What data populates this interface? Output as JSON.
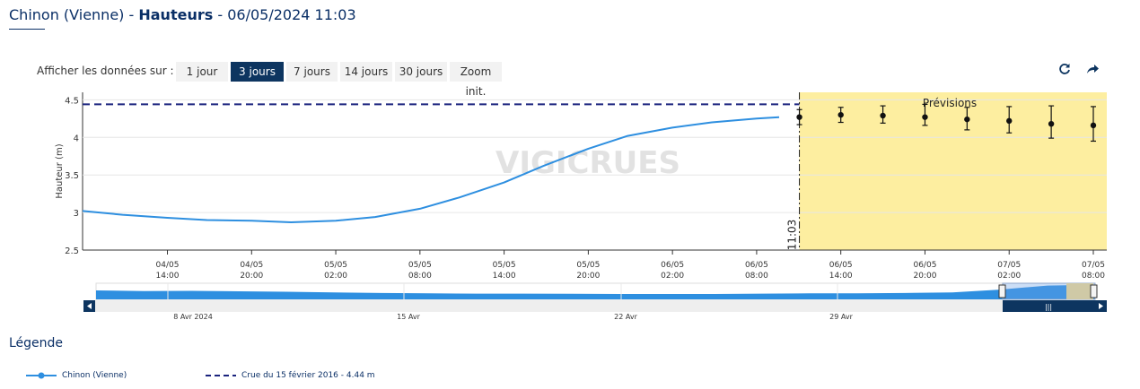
{
  "header": {
    "station": "Chinon (Vienne)",
    "sep1": " - ",
    "measure": "Hauteurs",
    "sep2": " - ",
    "datetime": "06/05/2024 11:03"
  },
  "period_selector": {
    "label": "Afficher les données sur :",
    "buttons": [
      "1 jour",
      "3 jours",
      "7 jours",
      "14 jours",
      "30 jours",
      "Zoom init."
    ],
    "active": "3 jours"
  },
  "toolbar": {
    "refresh_icon": "refresh-icon",
    "share_icon": "share-icon"
  },
  "colors": {
    "series": "#2e8fe0",
    "threshold": "#1a237e",
    "forecast_band": "#fdeea0",
    "active_button": "#0d3560",
    "navigator_fill": "#2e8fe0"
  },
  "legend": {
    "title": "Légende",
    "series_label": "Chinon (Vienne)",
    "threshold_label": "Crue du 15 février 2016 - 4.44 m"
  },
  "chart_data": {
    "type": "line",
    "ylabel": "Hauteur (m)",
    "ylim": [
      2.5,
      4.6
    ],
    "y_ticks": [
      "2.5",
      "3",
      "3.5",
      "4",
      "4.5"
    ],
    "x_ticks": [
      {
        "date": "04/05",
        "time": "14:00",
        "day": 4.583
      },
      {
        "date": "04/05",
        "time": "20:00",
        "day": 4.833
      },
      {
        "date": "05/05",
        "time": "02:00",
        "day": 5.083
      },
      {
        "date": "05/05",
        "time": "08:00",
        "day": 5.333
      },
      {
        "date": "05/05",
        "time": "14:00",
        "day": 5.583
      },
      {
        "date": "05/05",
        "time": "20:00",
        "day": 5.833
      },
      {
        "date": "06/05",
        "time": "02:00",
        "day": 6.083
      },
      {
        "date": "06/05",
        "time": "08:00",
        "day": 6.333
      },
      {
        "date": "06/05",
        "time": "14:00",
        "day": 6.583
      },
      {
        "date": "06/05",
        "time": "20:00",
        "day": 6.833
      },
      {
        "date": "07/05",
        "time": "02:00",
        "day": 7.083
      },
      {
        "date": "07/05",
        "time": "08:00",
        "day": 7.333
      }
    ],
    "x_range_days": [
      4.331,
      7.333
    ],
    "now_day": 6.46,
    "now_label": "11:03",
    "forecast_label": "Prévisions",
    "watermark": "VIGICRUES",
    "threshold": {
      "name": "Crue du 15 février 2016 - 4.44 m",
      "value": 4.44
    },
    "series": [
      {
        "name": "Chinon (Vienne)",
        "day": [
          4.331,
          4.45,
          4.583,
          4.7,
          4.833,
          4.95,
          5.083,
          5.2,
          5.333,
          5.45,
          5.583,
          5.7,
          5.833,
          5.95,
          6.083,
          6.2,
          6.333,
          6.4
        ],
        "value": [
          3.02,
          2.97,
          2.93,
          2.9,
          2.89,
          2.87,
          2.89,
          2.94,
          3.05,
          3.2,
          3.4,
          3.62,
          3.85,
          4.02,
          4.13,
          4.2,
          4.25,
          4.27
        ]
      }
    ],
    "forecast": {
      "day": [
        6.46,
        6.583,
        6.708,
        6.833,
        6.958,
        7.083,
        7.208,
        7.333
      ],
      "value": [
        4.27,
        4.3,
        4.29,
        4.27,
        4.24,
        4.22,
        4.18,
        4.16
      ],
      "low": [
        4.17,
        4.2,
        4.19,
        4.16,
        4.1,
        4.06,
        3.99,
        3.95
      ],
      "high": [
        4.37,
        4.4,
        4.42,
        4.44,
        4.4,
        4.41,
        4.42,
        4.41
      ]
    },
    "navigator": {
      "labels": [
        "8 Avr 2024",
        "15 Avr",
        "22 Avr",
        "29 Avr"
      ],
      "values": [
        3.78,
        3.72,
        3.74,
        3.7,
        3.66,
        3.6,
        3.55,
        3.52,
        3.5,
        3.5,
        3.48,
        3.47,
        3.47,
        3.47,
        3.5,
        3.52,
        3.52,
        3.55,
        3.6,
        3.85,
        4.2,
        4.27
      ]
    }
  }
}
